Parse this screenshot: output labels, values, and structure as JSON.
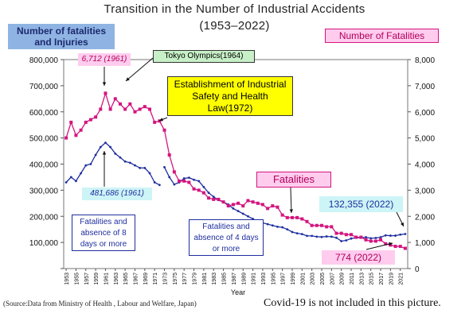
{
  "title_line1": "Transition in the Number of Industrial Accidents",
  "title_line2": "(1953–2022)",
  "left_axis_title": "Number of fatalities\nand Injuries",
  "right_axis_title": "Number of Fatalities",
  "xlabel": "Year",
  "source_note": "(Source:Data from Ministry of Health , Labour and Welfare, Japan)",
  "covid_note": "Covid-19 is not included in this picture.",
  "annotations": {
    "peak_fatal": "6,712 (1961)",
    "olympics": "Tokyo Olympics(1964)",
    "law": "Establishment of Industrial Safety and Health Law(1972)",
    "fatalities_label": "Fatalities",
    "peak_injury": "481,686 (1961)",
    "latest_injury": "132,355 (2022)",
    "absence8": "Fatalities and absence of  8 days or more",
    "absence4": "Fatalities and absence of 4 days or more",
    "latest_fatal": "774 (2022)"
  },
  "colors": {
    "injuries": "#1f2f9f",
    "fatalities": "#d4157f",
    "left_title_bg": "#8fb4e3",
    "right_title_bg": "#ffccee",
    "pink_box_bg": "#ffccee",
    "cyan_box_bg": "#cdf4f6",
    "green_box_bg": "#c8f0c8",
    "law_box_bg": "#ffff00"
  },
  "chart_data": {
    "type": "line",
    "x_range": [
      1953,
      2022
    ],
    "x_tick_labels": [
      "1953",
      "1955",
      "1957",
      "1959",
      "1961",
      "1963",
      "1965",
      "1967",
      "1969",
      "1971",
      "1973",
      "1975",
      "1977",
      "1979",
      "1981",
      "1983",
      "1985",
      "1987",
      "1989",
      "1991",
      "1993",
      "1995",
      "1997",
      "1999",
      "2001",
      "2003",
      "2005",
      "2007",
      "2009",
      "2011",
      "2013",
      "2015",
      "2017",
      "2019",
      "2021"
    ],
    "left_axis": {
      "min": 0,
      "max": 800000,
      "tick_labels": [
        "",
        "100,000",
        "200,000",
        "300,000",
        "400,000",
        "500,000",
        "600,000",
        "700,000",
        "800,000"
      ]
    },
    "right_axis": {
      "min": 0,
      "max": 8000,
      "tick_labels": [
        "0",
        "1,000",
        "2,000",
        "3,000",
        "4,000",
        "5,000",
        "6,000",
        "7,000",
        "8,000"
      ]
    },
    "grid": false,
    "series": [
      {
        "name": "Fatalities and absence of 8 days or more",
        "axis": "left",
        "x": [
          1953,
          1954,
          1955,
          1956,
          1957,
          1958,
          1959,
          1960,
          1961,
          1962,
          1963,
          1964,
          1965,
          1966,
          1967,
          1968,
          1969,
          1970,
          1971,
          1972
        ],
        "values": [
          330000,
          350000,
          335000,
          365000,
          395000,
          400000,
          435000,
          465000,
          481686,
          465000,
          440000,
          425000,
          410000,
          405000,
          395000,
          385000,
          385000,
          365000,
          330000,
          320000
        ]
      },
      {
        "name": "Fatalities and absence of 4 days or more",
        "axis": "left",
        "x": [
          1973,
          1974,
          1975,
          1976,
          1977,
          1978,
          1979,
          1980,
          1981,
          1982,
          1983,
          1984,
          1985,
          1986,
          1987,
          1988,
          1989,
          1990,
          1991,
          1992,
          1993,
          1994,
          1995,
          1996,
          1997,
          1998,
          1999,
          2000,
          2001,
          2002,
          2003,
          2004,
          2005,
          2006,
          2007,
          2008,
          2009,
          2010,
          2011,
          2012,
          2013,
          2014,
          2015,
          2016,
          2017,
          2018,
          2019,
          2020,
          2021,
          2022
        ],
        "values": [
          388000,
          350000,
          322000,
          330000,
          345000,
          348000,
          340000,
          335000,
          312000,
          290000,
          275000,
          262000,
          255000,
          245000,
          230000,
          220000,
          210000,
          200000,
          190000,
          180000,
          175000,
          170000,
          165000,
          160000,
          158000,
          150000,
          140000,
          135000,
          132000,
          125000,
          125000,
          122000,
          121000,
          123000,
          122000,
          118000,
          105000,
          108000,
          115000,
          118000,
          118000,
          120000,
          116000,
          117000,
          120000,
          127000,
          126000,
          126000,
          130000,
          132355
        ]
      },
      {
        "name": "Fatalities",
        "axis": "right",
        "x": [
          1953,
          1954,
          1955,
          1956,
          1957,
          1958,
          1959,
          1960,
          1961,
          1962,
          1963,
          1964,
          1965,
          1966,
          1967,
          1968,
          1969,
          1970,
          1971,
          1972,
          1973,
          1974,
          1975,
          1976,
          1977,
          1978,
          1979,
          1980,
          1981,
          1982,
          1983,
          1984,
          1985,
          1986,
          1987,
          1988,
          1989,
          1990,
          1991,
          1992,
          1993,
          1994,
          1995,
          1996,
          1997,
          1998,
          1999,
          2000,
          2001,
          2002,
          2003,
          2004,
          2005,
          2006,
          2007,
          2008,
          2009,
          2010,
          2011,
          2012,
          2013,
          2014,
          2015,
          2016,
          2017,
          2018,
          2019,
          2020,
          2021,
          2022
        ],
        "values": [
          5000,
          5600,
          5100,
          5300,
          5600,
          5700,
          5800,
          6100,
          6712,
          6100,
          6500,
          6300,
          6100,
          6300,
          6000,
          6100,
          6200,
          6100,
          5600,
          5650,
          5300,
          4350,
          3700,
          3350,
          3350,
          3300,
          3050,
          3000,
          2900,
          2700,
          2650,
          2650,
          2550,
          2400,
          2450,
          2500,
          2400,
          2600,
          2550,
          2500,
          2450,
          2300,
          2400,
          2350,
          2050,
          1950,
          1950,
          1950,
          1900,
          1800,
          1650,
          1650,
          1650,
          1600,
          1600,
          1350,
          1350,
          1300,
          1300,
          1200,
          1200,
          1100,
          1050,
          1050,
          1100,
          950,
          900,
          850,
          850,
          774
        ]
      }
    ]
  }
}
